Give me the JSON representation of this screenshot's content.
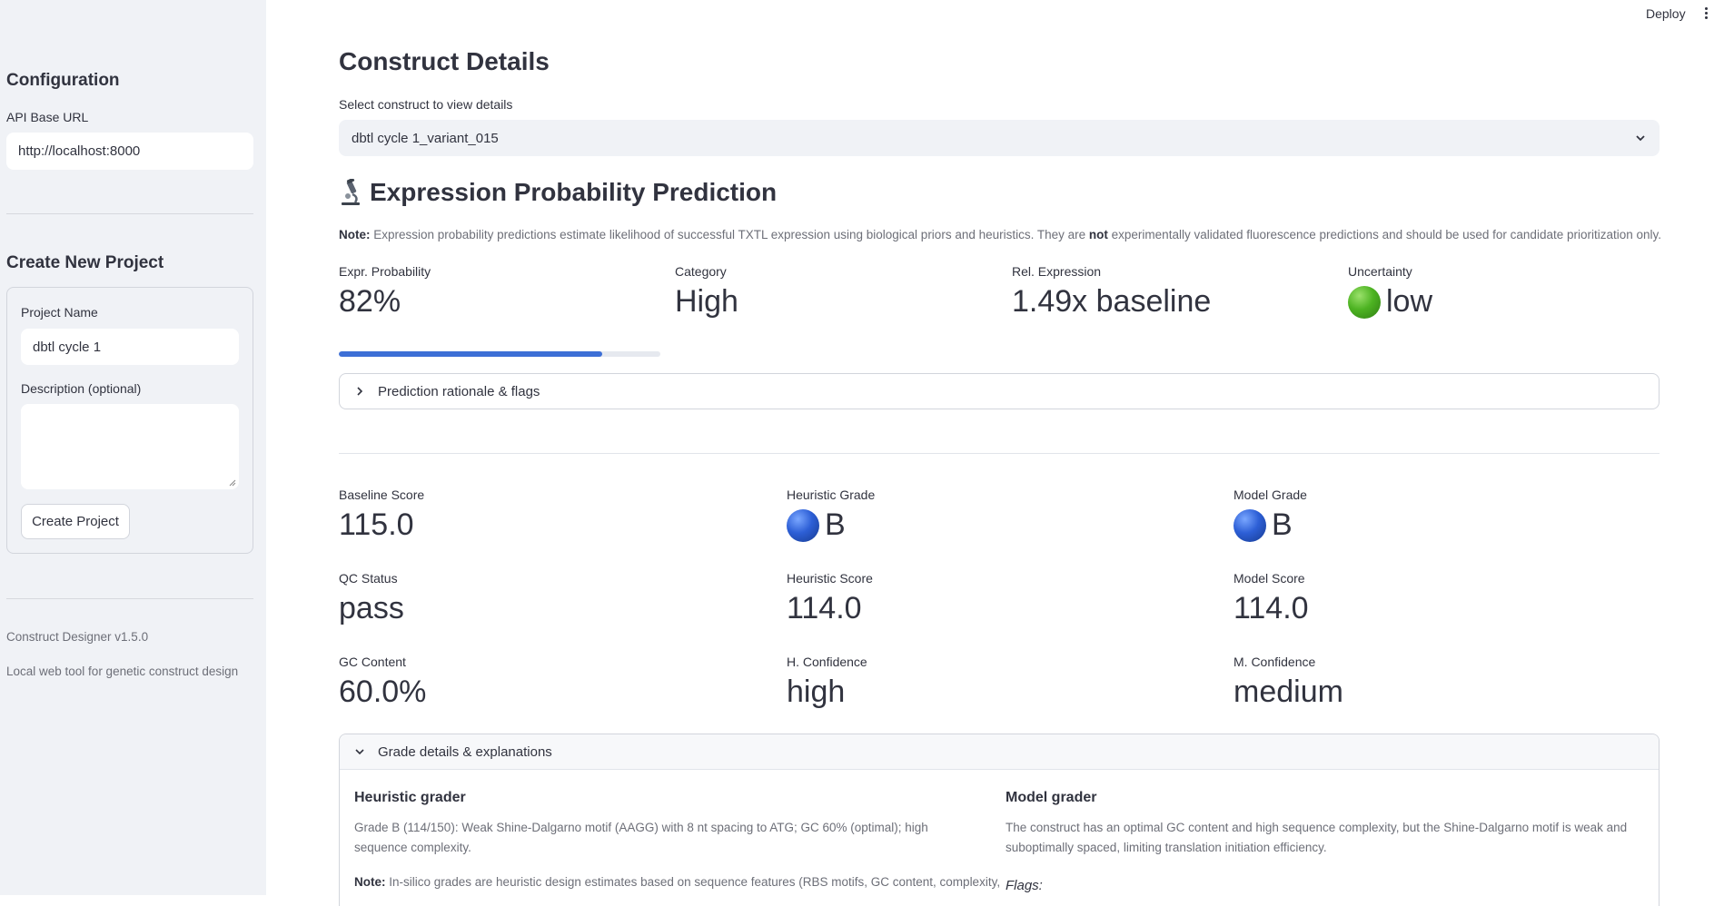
{
  "header": {
    "deploy_label": "Deploy"
  },
  "sidebar": {
    "config_title": "Configuration",
    "api_label": "API Base URL",
    "api_value": "http://localhost:8000",
    "create_title": "Create New Project",
    "project_name_label": "Project Name",
    "project_name_value": "dbtl cycle 1",
    "description_label": "Description (optional)",
    "description_value": "",
    "create_button": "Create Project",
    "version": "Construct Designer v1.5.0",
    "tagline": "Local web tool for genetic construct design"
  },
  "main": {
    "title": "Construct Details",
    "select_label": "Select construct to view details",
    "select_value": "dbtl cycle 1_variant_015",
    "prediction": {
      "icon": "microscope-icon",
      "title": "Expression Probability Prediction",
      "note_prefix": "Note:",
      "note_part1": " Expression probability predictions estimate likelihood of successful TXTL expression using biological priors and heuristics. They are ",
      "note_not": "not",
      "note_part2": " experimentally validated fluorescence predictions and should be used for candidate prioritization only.",
      "metrics": [
        {
          "label": "Expr. Probability",
          "value": "82%"
        },
        {
          "label": "Category",
          "value": "High"
        },
        {
          "label": "Rel. Expression",
          "value": "1.49x baseline"
        },
        {
          "label": "Uncertainty",
          "value": "low",
          "dot_color": "#4db322"
        }
      ],
      "probability_fraction": 0.82,
      "rationale_label": "Prediction rationale & flags"
    },
    "scores": {
      "rows": [
        [
          {
            "label": "Baseline Score",
            "value": "115.0"
          },
          {
            "label": "Heuristic Grade",
            "value": "B",
            "dot_color": "#2d5fd6"
          },
          {
            "label": "Model Grade",
            "value": "B",
            "dot_color": "#2d5fd6"
          }
        ],
        [
          {
            "label": "QC Status",
            "value": "pass"
          },
          {
            "label": "Heuristic Score",
            "value": "114.0"
          },
          {
            "label": "Model Score",
            "value": "114.0"
          }
        ],
        [
          {
            "label": "GC Content",
            "value": "60.0%"
          },
          {
            "label": "H. Confidence",
            "value": "high"
          },
          {
            "label": "M. Confidence",
            "value": "medium"
          }
        ]
      ]
    },
    "grade_details": {
      "label": "Grade details & explanations",
      "heuristic_title": "Heuristic grader",
      "heuristic_text": "Grade B (114/150): Weak Shine-Dalgarno motif (AAGG) with 8 nt spacing to ATG; GC 60% (optimal); high sequence complexity.",
      "heuristic_note_prefix": "Note:",
      "heuristic_note": " In-silico grades are heuristic design estimates based on sequence features (RBS motifs, GC content, complexity,",
      "model_title": "Model grader",
      "model_text": "The construct has an optimal GC content and high sequence complexity, but the Shine-Dalgarno motif is weak and suboptimally spaced, limiting translation initiation efficiency.",
      "flags_label": "Flags:"
    }
  }
}
